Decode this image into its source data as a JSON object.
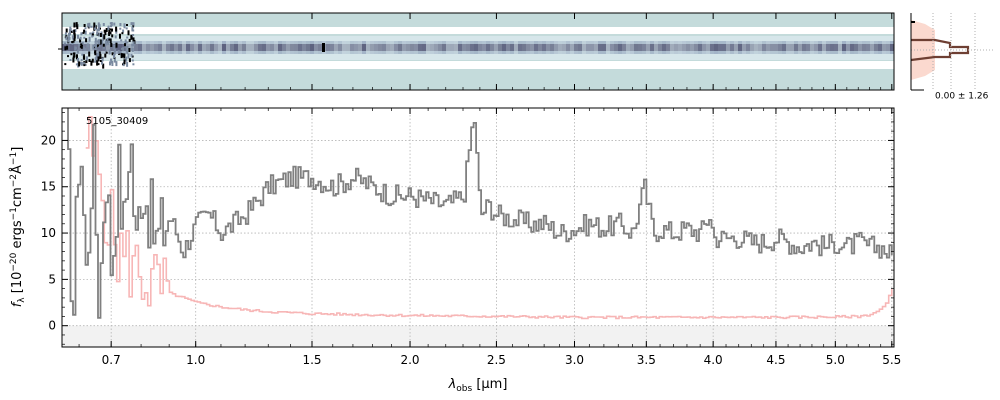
{
  "chart_data": {
    "type": "line",
    "title": "",
    "annotation": "5105_30409",
    "xlabel": "λ_obs [μm]",
    "xlabel_main": "λ",
    "xlabel_sub": "obs",
    "xlabel_unit": " [μm]",
    "ylabel": "f_λ [10^-20 ergs^-1 cm^-2 Å^-1]",
    "ylabel_main": "f",
    "ylabel_sub": "λ",
    "ylabel_bracket_open": " [10",
    "ylabel_exp1": "−20",
    "ylabel_mid1": " ergs",
    "ylabel_exp2": "−1",
    "ylabel_mid2": "cm",
    "ylabel_exp3": "−2",
    "ylabel_mid3": "Å",
    "ylabel_exp4": "−1",
    "ylabel_bracket_close": "]",
    "x_scale": "sqrt",
    "xlim": [
      0.55,
      5.52
    ],
    "ylim": [
      -2.3,
      23.5
    ],
    "x_ticks": [
      0.7,
      1.0,
      1.5,
      2.0,
      2.5,
      3.0,
      3.5,
      4.0,
      4.5,
      5.0,
      5.5
    ],
    "x_tick_labels": [
      "0.7",
      "1.0",
      "1.5",
      "2.0",
      "2.5",
      "3.0",
      "3.5",
      "4.0",
      "4.5",
      "5.0",
      "5.5"
    ],
    "y_ticks": [
      0,
      5,
      10,
      15,
      20
    ],
    "y_tick_labels": [
      "0",
      "5",
      "10",
      "15",
      "20"
    ],
    "grid": true,
    "series": [
      {
        "color": "#808080",
        "style": "step",
        "x": [
          0.56,
          0.58,
          0.6,
          0.62,
          0.64,
          0.66,
          0.68,
          0.7,
          0.72,
          0.74,
          0.76,
          0.78,
          0.8,
          0.85,
          0.9,
          0.95,
          1.0,
          1.05,
          1.1,
          1.15,
          1.2,
          1.3,
          1.4,
          1.5,
          1.6,
          1.7,
          1.8,
          1.9,
          2.0,
          2.1,
          2.2,
          2.3,
          2.36,
          2.4,
          2.45,
          2.5,
          2.6,
          2.7,
          2.8,
          2.9,
          3.0,
          3.1,
          3.2,
          3.3,
          3.4,
          3.48,
          3.55,
          3.6,
          3.7,
          3.8,
          3.9,
          3.97,
          4.0,
          4.1,
          4.2,
          4.3,
          4.4,
          4.5,
          4.6,
          4.7,
          4.8,
          4.9,
          5.0,
          5.1,
          5.2,
          5.3,
          5.4,
          5.5
        ],
        "y": [
          24,
          0,
          22,
          5,
          20,
          2,
          18,
          6,
          17,
          10,
          22,
          8,
          16,
          9,
          12,
          8,
          11,
          12,
          10,
          11,
          12,
          15,
          16,
          16,
          15,
          16,
          15,
          14,
          14,
          13.5,
          13,
          14,
          23,
          12,
          13,
          12,
          11.5,
          11,
          11,
          10,
          10.5,
          11,
          10.5,
          11,
          10,
          15,
          10,
          10.5,
          10,
          10.5,
          10,
          12,
          9.5,
          9.5,
          9.5,
          9,
          9,
          9.5,
          9,
          8.5,
          9,
          8.5,
          9,
          8.5,
          9,
          8.5,
          8.5,
          7.5
        ]
      },
      {
        "color": "#f7b6b6",
        "style": "step",
        "x": [
          0.62,
          0.65,
          0.68,
          0.7,
          0.72,
          0.75,
          0.8,
          0.85,
          0.9,
          0.95,
          1.0,
          1.1,
          1.2,
          1.3,
          1.5,
          1.7,
          2.0,
          2.5,
          3.0,
          3.5,
          4.0,
          4.5,
          5.0,
          5.2,
          5.3,
          5.4,
          5.45,
          5.5
        ],
        "y": [
          20,
          17,
          13,
          10,
          8,
          7,
          5.5,
          4,
          3.5,
          3,
          2.5,
          2,
          1.7,
          1.5,
          1.3,
          1.2,
          1.1,
          1.0,
          0.9,
          0.9,
          0.9,
          0.9,
          0.95,
          1.0,
          1.2,
          1.8,
          2.5,
          4.0
        ]
      }
    ],
    "profile_label": "0.00 ± 1.26"
  }
}
